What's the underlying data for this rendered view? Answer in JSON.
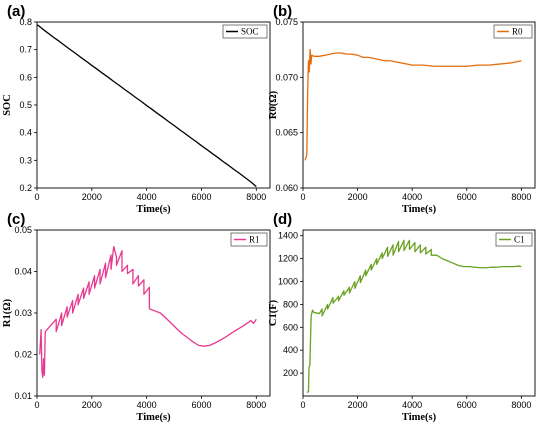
{
  "chart_data": [
    {
      "type": "line",
      "panel_label": "(a)",
      "xlabel": "Time(s)",
      "ylabel": "SOC",
      "xlim": [
        0,
        8500
      ],
      "ylim": [
        0.2,
        0.8
      ],
      "xticks": [
        0,
        2000,
        4000,
        6000,
        8000
      ],
      "yticks": [
        0.2,
        0.3,
        0.4,
        0.5,
        0.6,
        0.7,
        0.8
      ],
      "ytick_labels": [
        "0.2",
        "0.3",
        "0.4",
        "0.5",
        "0.6",
        "0.7",
        "0.8"
      ],
      "legend_position": "top-right",
      "series": [
        {
          "name": "SOC",
          "color": "#000000",
          "x": [
            0,
            80,
            200,
            400,
            600,
            800,
            1000,
            1200,
            1400,
            1600,
            1800,
            2000,
            2200,
            2400,
            2600,
            2800,
            3000,
            3200,
            3400,
            3600,
            3800,
            4000,
            4200,
            4400,
            4600,
            4800,
            5000,
            5200,
            5400,
            5600,
            5800,
            6000,
            6200,
            6400,
            6600,
            6800,
            7000,
            7200,
            7400,
            7600,
            7800,
            8000
          ],
          "y": [
            0.79,
            0.785,
            0.775,
            0.76,
            0.745,
            0.731,
            0.716,
            0.701,
            0.687,
            0.672,
            0.658,
            0.643,
            0.629,
            0.614,
            0.6,
            0.585,
            0.571,
            0.556,
            0.542,
            0.527,
            0.513,
            0.498,
            0.484,
            0.469,
            0.455,
            0.44,
            0.426,
            0.411,
            0.397,
            0.382,
            0.368,
            0.353,
            0.339,
            0.324,
            0.31,
            0.295,
            0.281,
            0.266,
            0.252,
            0.237,
            0.222,
            0.205
          ]
        }
      ]
    },
    {
      "type": "line",
      "panel_label": "(b)",
      "xlabel": "Time(s)",
      "ylabel": "R0(Ω)",
      "xlim": [
        0,
        8500
      ],
      "ylim": [
        0.06,
        0.075
      ],
      "xticks": [
        0,
        2000,
        4000,
        6000,
        8000
      ],
      "yticks": [
        0.06,
        0.065,
        0.07,
        0.075
      ],
      "ytick_labels": [
        "0.060",
        "0.065",
        "0.070",
        "0.075"
      ],
      "legend_position": "top-right",
      "series": [
        {
          "name": "R0",
          "color": "#e46c0a",
          "x": [
            80,
            140,
            170,
            200,
            230,
            260,
            290,
            320,
            400,
            600,
            800,
            1000,
            1200,
            1400,
            1600,
            1800,
            2000,
            2200,
            2400,
            2600,
            2800,
            3000,
            3200,
            3400,
            3600,
            3800,
            4000,
            4400,
            4800,
            5200,
            5600,
            6000,
            6400,
            6800,
            7200,
            7600,
            8000
          ],
          "y": [
            0.0625,
            0.063,
            0.0685,
            0.0715,
            0.0705,
            0.0725,
            0.0712,
            0.072,
            0.0719,
            0.0719,
            0.072,
            0.0721,
            0.0722,
            0.0722,
            0.0721,
            0.0721,
            0.072,
            0.0718,
            0.0718,
            0.0717,
            0.0716,
            0.0715,
            0.0715,
            0.0714,
            0.0713,
            0.0712,
            0.0711,
            0.0711,
            0.071,
            0.071,
            0.071,
            0.071,
            0.0711,
            0.0711,
            0.0712,
            0.0713,
            0.0715
          ]
        }
      ]
    },
    {
      "type": "line",
      "panel_label": "(c)",
      "xlabel": "Time(s)",
      "ylabel": "R1(Ω)",
      "xlim": [
        0,
        8500
      ],
      "ylim": [
        0.01,
        0.05
      ],
      "xticks": [
        0,
        2000,
        4000,
        6000,
        8000
      ],
      "yticks": [
        0.01,
        0.02,
        0.03,
        0.04,
        0.05
      ],
      "ytick_labels": [
        "0.01",
        "0.02",
        "0.03",
        "0.04",
        "0.05"
      ],
      "legend_position": "top-right",
      "series": [
        {
          "name": "R1",
          "color": "#e8388f",
          "x": [
            100,
            150,
            180,
            210,
            240,
            270,
            300,
            500,
            700,
            700,
            900,
            900,
            1100,
            1100,
            1300,
            1300,
            1500,
            1500,
            1700,
            1700,
            1900,
            1900,
            2100,
            2100,
            2300,
            2300,
            2500,
            2500,
            2700,
            2700,
            2800,
            2900,
            2900,
            3100,
            3100,
            3300,
            3300,
            3500,
            3500,
            3700,
            3700,
            3900,
            3900,
            4100,
            4100,
            4300,
            4500,
            4700,
            4900,
            5100,
            5300,
            5500,
            5700,
            5900,
            6100,
            6300,
            6500,
            6700,
            6900,
            7100,
            7300,
            7500,
            7700,
            7800,
            7900,
            8000
          ],
          "y": [
            0.02,
            0.026,
            0.016,
            0.0145,
            0.019,
            0.015,
            0.0255,
            0.027,
            0.0285,
            0.0255,
            0.03,
            0.027,
            0.0315,
            0.029,
            0.033,
            0.03,
            0.0345,
            0.032,
            0.036,
            0.0335,
            0.0375,
            0.0345,
            0.039,
            0.036,
            0.0405,
            0.037,
            0.042,
            0.0385,
            0.044,
            0.0405,
            0.046,
            0.0435,
            0.0415,
            0.045,
            0.04,
            0.0415,
            0.0395,
            0.0405,
            0.037,
            0.039,
            0.0365,
            0.038,
            0.0345,
            0.0362,
            0.031,
            0.0305,
            0.03,
            0.0288,
            0.0275,
            0.0262,
            0.025,
            0.024,
            0.023,
            0.0222,
            0.022,
            0.0222,
            0.0228,
            0.0235,
            0.0243,
            0.0252,
            0.026,
            0.0268,
            0.0277,
            0.0282,
            0.0275,
            0.0285
          ]
        }
      ]
    },
    {
      "type": "line",
      "panel_label": "(d)",
      "xlabel": "Time(s)",
      "ylabel": "C1(F)",
      "xlim": [
        0,
        8500
      ],
      "ylim": [
        0,
        1450
      ],
      "xticks": [
        0,
        2000,
        4000,
        6000,
        8000
      ],
      "yticks": [
        200,
        400,
        600,
        800,
        1000,
        1200,
        1400
      ],
      "ytick_labels": [
        "200",
        "400",
        "600",
        "800",
        "1000",
        "1200",
        "1400"
      ],
      "legend_position": "top-right",
      "series": [
        {
          "name": "C1",
          "color": "#6aa121",
          "x": [
            150,
            200,
            220,
            250,
            300,
            350,
            400,
            600,
            700,
            700,
            900,
            900,
            1100,
            1100,
            1300,
            1300,
            1500,
            1500,
            1700,
            1700,
            1900,
            1900,
            2100,
            2100,
            2300,
            2300,
            2500,
            2500,
            2700,
            2700,
            2900,
            2900,
            3100,
            3100,
            3300,
            3300,
            3500,
            3500,
            3700,
            3700,
            3900,
            3900,
            4100,
            4100,
            4300,
            4300,
            4500,
            4500,
            4700,
            4700,
            4900,
            5100,
            5300,
            5500,
            5700,
            5900,
            6100,
            6300,
            6500,
            6700,
            6900,
            7100,
            7300,
            7500,
            7700,
            7900,
            8000
          ],
          "y": [
            30,
            40,
            250,
            270,
            700,
            750,
            730,
            720,
            760,
            700,
            800,
            760,
            860,
            810,
            870,
            830,
            920,
            880,
            950,
            900,
            1000,
            940,
            1050,
            990,
            1100,
            1050,
            1150,
            1100,
            1200,
            1150,
            1250,
            1200,
            1300,
            1220,
            1320,
            1230,
            1350,
            1260,
            1360,
            1270,
            1360,
            1280,
            1340,
            1260,
            1320,
            1250,
            1300,
            1240,
            1280,
            1230,
            1230,
            1200,
            1180,
            1160,
            1140,
            1130,
            1130,
            1125,
            1120,
            1120,
            1125,
            1125,
            1130,
            1130,
            1130,
            1135,
            1130
          ]
        }
      ]
    }
  ]
}
